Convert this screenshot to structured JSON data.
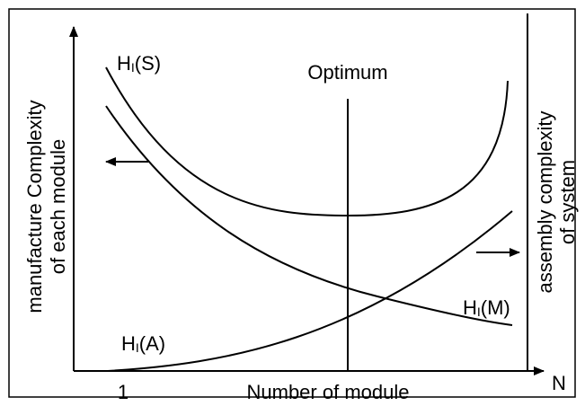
{
  "title": "Optimum",
  "y_label": [
    "manufacture Complexity",
    "of each module"
  ],
  "y2_label": [
    "assembly complexity",
    "of system"
  ],
  "x_label": "Number of module",
  "x_start": "1",
  "x_end": "N",
  "curves": [
    {
      "main": "H",
      "sub": "I",
      "rest": "(S)"
    },
    {
      "main": "H",
      "sub": "I",
      "rest": "(A)"
    },
    {
      "main": "H",
      "sub": "I",
      "rest": "(M)"
    }
  ]
}
